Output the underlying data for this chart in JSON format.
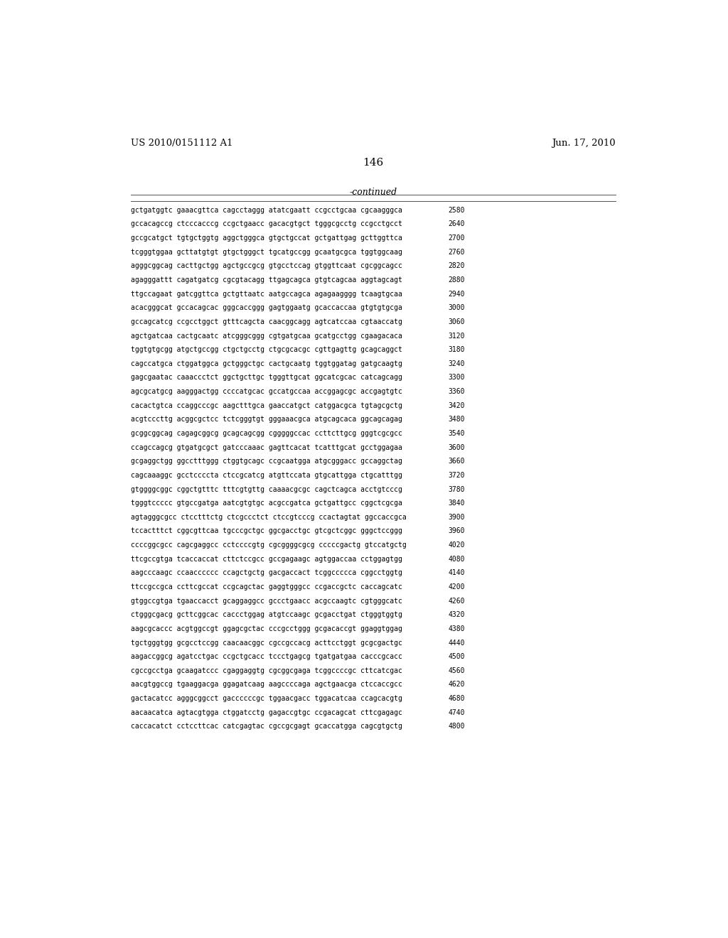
{
  "header_left": "US 2010/0151112 A1",
  "header_right": "Jun. 17, 2010",
  "page_number": "146",
  "continued_label": "-continued",
  "background_color": "#ffffff",
  "text_color": "#000000",
  "seq_font_size": 7.0,
  "header_font_size": 9.5,
  "page_num_font_size": 11,
  "continued_font_size": 9,
  "sequences": [
    [
      "gctgatggtc gaaacgttca cagcctaggg atatcgaatt ccgcctgcaa cgcaagggca",
      "2580"
    ],
    [
      "gccacagccg ctcccacccg ccgctgaacc gacacgtgct tgggcgcctg ccgcctgcct",
      "2640"
    ],
    [
      "gccgcatgct tgtgctggtg aggctgggca gtgctgccat gctgattgag gcttggttca",
      "2700"
    ],
    [
      "tcgggtggaa gcttatgtgt gtgctgggct tgcatgccgg gcaatgcgca tggtggcaag",
      "2760"
    ],
    [
      "agggcggcag cacttgctgg agctgccgcg gtgcctccag gtggttcaat cgcggcagcc",
      "2820"
    ],
    [
      "agagggattt cagatgatcg cgcgtacagg ttgagcagca gtgtcagcaa aggtagcagt",
      "2880"
    ],
    [
      "ttgccagaat gatcggttca gctgttaatc aatgccagca agagaagggg tcaagtgcaa",
      "2940"
    ],
    [
      "acacgggcat gccacagcac gggcaccggg gagtggaatg gcaccaccaa gtgtgtgcga",
      "3000"
    ],
    [
      "gccagcatcg ccgcctggct gtttcagcta caacggcagg agtcatccaa cgtaaccatg",
      "3060"
    ],
    [
      "agctgatcaa cactgcaatc atcgggcggg cgtgatgcaa gcatgcctgg cgaagacaca",
      "3120"
    ],
    [
      "tggtgtgcgg atgctgccgg ctgctgcctg ctgcgcacgc cgttgagttg gcagcaggct",
      "3180"
    ],
    [
      "cagccatgca ctggatggca gctgggctgc cactgcaatg tggtggatag gatgcaagtg",
      "3240"
    ],
    [
      "gagcgaatac caaaccctct ggctgcttgc tgggttgcat ggcatcgcac catcagcagg",
      "3300"
    ],
    [
      "agcgcatgcg aagggactgg ccccatgcac gccatgccaa accggagcgc accgagtgtc",
      "3360"
    ],
    [
      "cacactgtca ccaggcccgc aagctttgca gaaccatgct catggacgca tgtagcgctg",
      "3420"
    ],
    [
      "acgtcccttg acggcgctcc tctcgggtgt gggaaacgca atgcagcaca ggcagcagag",
      "3480"
    ],
    [
      "gcggcggcag cagagcggcg gcagcagcgg cgggggccac ccttcttgcg gggtcgcgcc",
      "3540"
    ],
    [
      "ccagccagcg gtgatgcgct gatcccaaac gagttcacat tcatttgcat gcctggagaa",
      "3600"
    ],
    [
      "gcgaggctgg ggcctttggg ctggtgcagc ccgcaatgga atgcgggacc gccaggctag",
      "3660"
    ],
    [
      "cagcaaaggc gcctccccta ctccgcatcg atgttccata gtgcattgga ctgcatttgg",
      "3720"
    ],
    [
      "gtggggcggc cggctgtttc tttcgtgttg caaaacgcgc cagctcagca acctgtcccg",
      "3780"
    ],
    [
      "tgggtccccc gtgccgatga aatcgtgtgc acgccgatca gctgattgcc cggctcgcga",
      "3840"
    ],
    [
      "agtagggcgcc ctcctttctg ctcgccctct ctccgtcccg ccactagtat ggccaccgca",
      "3900"
    ],
    [
      "tccactttct cggcgttcaa tgcccgctgc ggcgacctgc gtcgctcggc gggctccggg",
      "3960"
    ],
    [
      "ccccggcgcc cagcgaggcc cctccccgtg cgcggggcgcg cccccgactg gtccatgctg",
      "4020"
    ],
    [
      "ttcgccgtga tcaccaccat cttctccgcc gccgagaagc agtggaccaa cctggagtgg",
      "4080"
    ],
    [
      "aagcccaagc ccaacccccc ccagctgctg gacgaccact tcggccccca cggcctggtg",
      "4140"
    ],
    [
      "ttccgccgca ccttcgccat ccgcagctac gaggtgggcc ccgaccgctc caccagcatc",
      "4200"
    ],
    [
      "gtggccgtga tgaaccacct gcaggaggcc gccctgaacc acgccaagtc cgtgggcatc",
      "4260"
    ],
    [
      "ctgggcgacg gcttcggcac caccctggag atgtccaagc gcgacctgat ctgggtggtg",
      "4320"
    ],
    [
      "aagcgcaccc acgtggccgt ggagcgctac cccgcctggg gcgacaccgt ggaggtggag",
      "4380"
    ],
    [
      "tgctgggtgg gcgcctccgg caacaacggc cgccgccacg acttcctggt gcgcgactgc",
      "4440"
    ],
    [
      "aagaccggcg agatcctgac ccgctgcacc tccctgagcg tgatgatgaa cacccgcacc",
      "4500"
    ],
    [
      "cgccgcctga gcaagatccc cgaggaggtg cgcggcgaga tcggccccgc cttcatcgac",
      "4560"
    ],
    [
      "aacgtggccg tgaaggacga ggagatcaag aagccccaga agctgaacga ctccaccgcc",
      "4620"
    ],
    [
      "gactacatcc agggcggcct gaccccccgc tggaacgacc tggacatcaa ccagcacgtg",
      "4680"
    ],
    [
      "aacaacatca agtacgtgga ctggatcctg gagaccgtgc ccgacagcat cttcgagagc",
      "4740"
    ],
    [
      "caccacatct cctccttcac catcgagtac cgccgcgagt gcaccatgga cagcgtgctg",
      "4800"
    ]
  ]
}
